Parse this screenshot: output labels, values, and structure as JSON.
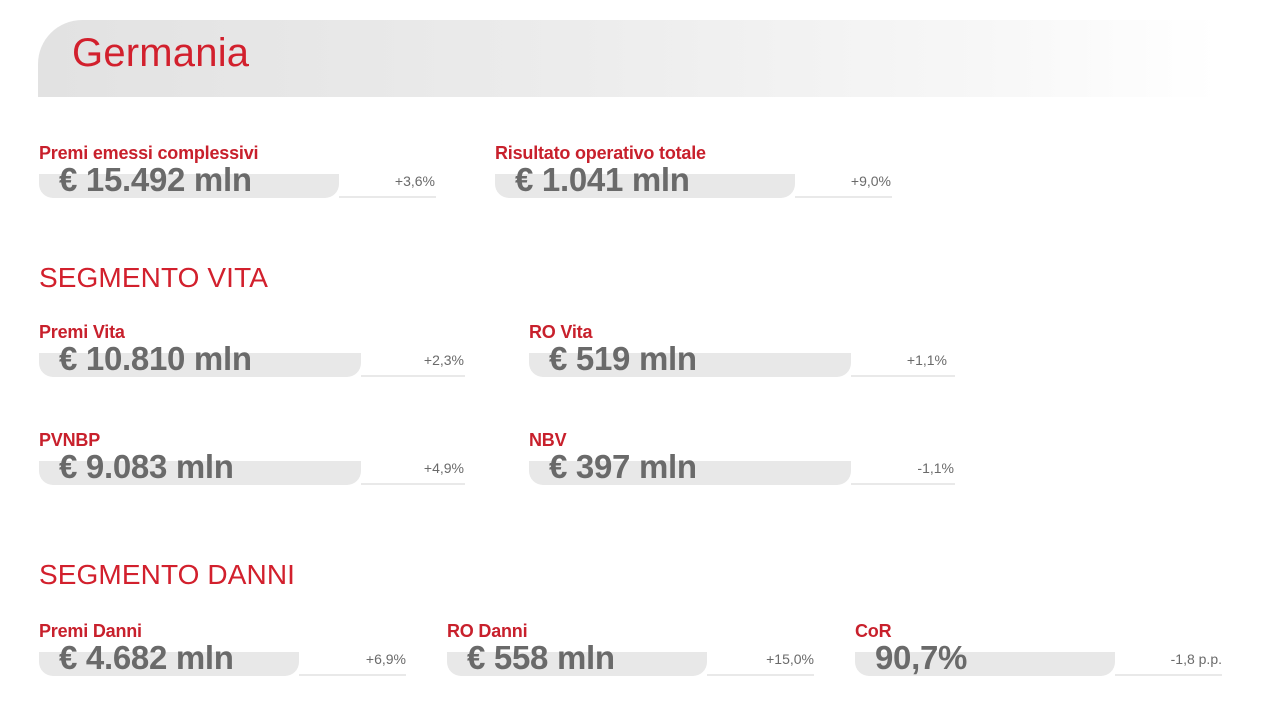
{
  "header": {
    "title": "Germania"
  },
  "summary": {
    "premi": {
      "label": "Premi emessi complessivi",
      "value": "€ 15.492 mln",
      "delta": "+3,6%"
    },
    "risultato": {
      "label": "Risultato operativo totale",
      "value": "€ 1.041 mln",
      "delta": "+9,0%"
    }
  },
  "vita": {
    "title": "SEGMENTO VITA",
    "premi": {
      "label": "Premi Vita",
      "value": "€ 10.810 mln",
      "delta": "+2,3%"
    },
    "ro": {
      "label": "RO Vita",
      "value": "€ 519 mln",
      "delta": "+1,1%"
    },
    "pvnbp": {
      "label": "PVNBP",
      "value": "€ 9.083 mln",
      "delta": "+4,9%"
    },
    "nbv": {
      "label": "NBV",
      "value": "€ 397 mln",
      "delta": "-1,1%"
    }
  },
  "danni": {
    "title": "SEGMENTO DANNI",
    "premi": {
      "label": "Premi Danni",
      "value": "€ 4.682 mln",
      "delta": "+6,9%"
    },
    "ro": {
      "label": "RO Danni",
      "value": "€ 558 mln",
      "delta": "+15,0%"
    },
    "cor": {
      "label": "CoR",
      "value": "90,7%",
      "delta": "-1,8 p.p."
    }
  }
}
